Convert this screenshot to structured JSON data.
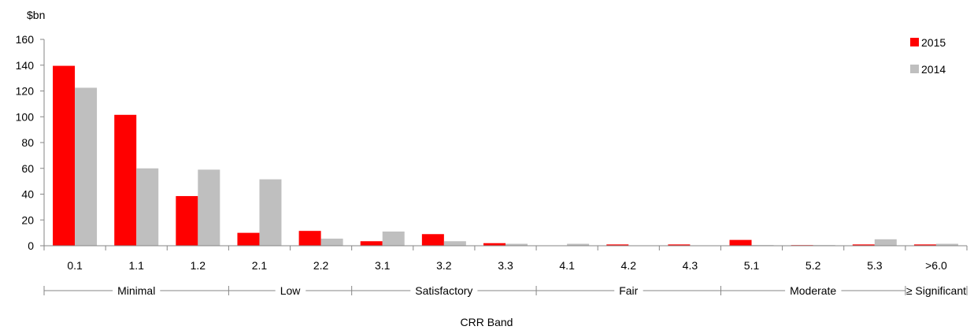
{
  "chart_data": {
    "type": "bar",
    "y_unit": "$bn",
    "xlabel": "CRR Band",
    "categories": [
      "0.1",
      "1.1",
      "1.2",
      "2.1",
      "2.2",
      "3.1",
      "3.2",
      "3.3",
      "4.1",
      "4.2",
      "4.3",
      "5.1",
      "5.2",
      "5.3",
      ">6.0"
    ],
    "series": [
      {
        "name": "2015",
        "color": "#ff0000",
        "values": [
          139.5,
          101.5,
          38.5,
          10,
          11.5,
          3.5,
          9,
          2,
          0,
          1,
          1,
          4.5,
          0.5,
          1,
          1
        ]
      },
      {
        "name": "2014",
        "color": "#bfbfbf",
        "values": [
          122.5,
          60,
          59,
          51.5,
          5.5,
          11,
          3.5,
          1.5,
          1.5,
          0,
          0,
          0.5,
          0.5,
          5,
          1.5
        ]
      }
    ],
    "ylim": [
      0,
      160
    ],
    "yticks": [
      "0",
      "20",
      "40",
      "60",
      "80",
      "100",
      "120",
      "140",
      "160"
    ],
    "groups": [
      {
        "label": "Minimal",
        "categories": [
          "0.1",
          "1.1",
          "1.2"
        ]
      },
      {
        "label": "Low",
        "categories": [
          "2.1",
          "2.2"
        ]
      },
      {
        "label": "Satisfactory",
        "categories": [
          "3.1",
          "3.2",
          "3.3"
        ]
      },
      {
        "label": "Fair",
        "categories": [
          "4.1",
          "4.2",
          "4.3"
        ]
      },
      {
        "label": "Moderate",
        "categories": [
          "5.1",
          "5.2",
          "5.3"
        ]
      },
      {
        "label": "≥ Significant",
        "categories": [
          ">6.0"
        ]
      }
    ],
    "grid": false,
    "legend_position": "top-right"
  }
}
